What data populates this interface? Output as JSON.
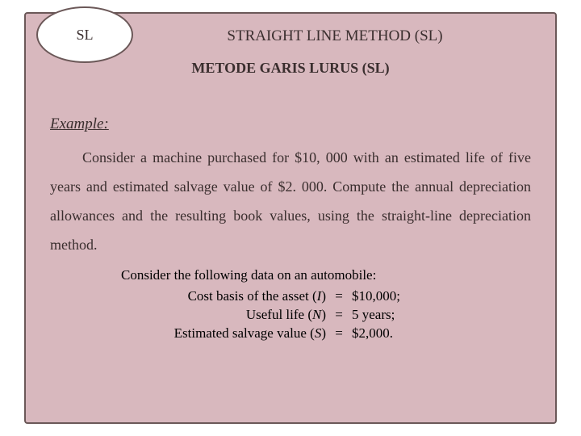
{
  "badge": "SL",
  "title": "STRAIGHT LINE METHOD (SL)",
  "subtitle": "METODE GARIS LURUS (SL)",
  "exampleLabel": "Example:",
  "bodyText": "Consider a machine purchased for $10, 000 with an estimated life of five years and estimated salvage value of $2. 000. Compute the annual depreciation allowances and the resulting book values, using the straight-line depreciation method.",
  "dataBlock": {
    "heading": "Consider the following data on an automobile:",
    "rows": [
      {
        "label": "Cost basis of the asset (",
        "sym": "I",
        "labelEnd": ")",
        "value": "$10,000;"
      },
      {
        "label": "Useful life (",
        "sym": "N",
        "labelEnd": ")",
        "value": "5 years;"
      },
      {
        "label": "Estimated salvage value (",
        "sym": "S",
        "labelEnd": ")",
        "value": "$2,000."
      }
    ]
  },
  "colors": {
    "panel": "#d8b8be",
    "border": "#6b5858",
    "text": "#3a2e2e",
    "dataText": "#000000"
  }
}
